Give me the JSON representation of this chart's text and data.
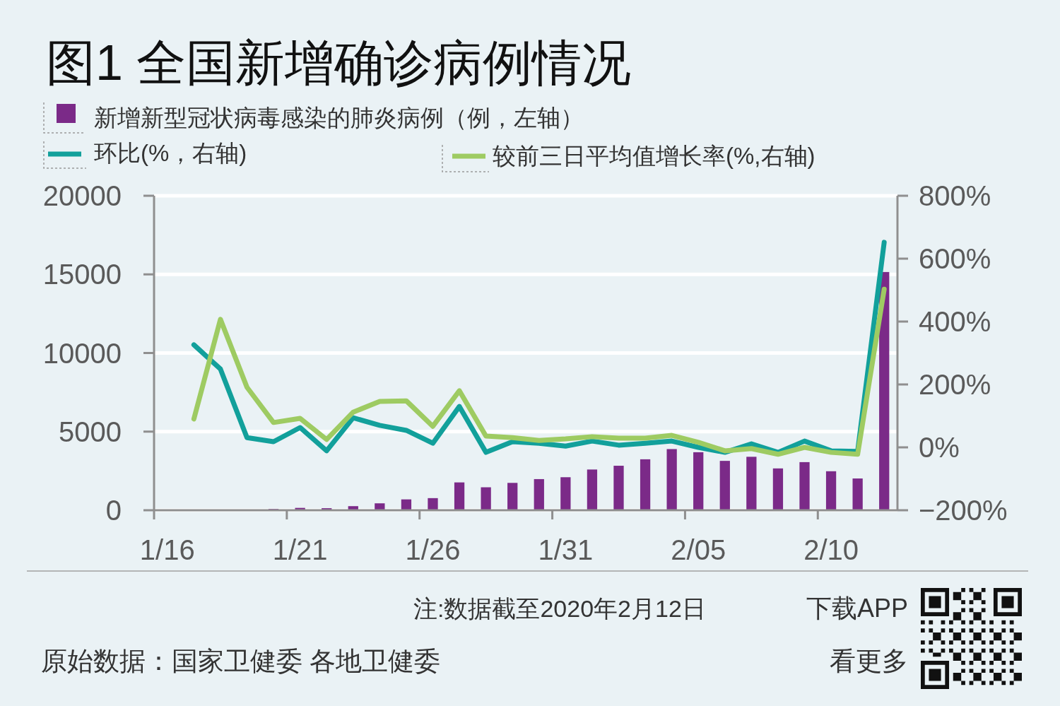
{
  "chart_data": {
    "type": "bar",
    "title": "图1 全国新增确诊病例情况",
    "categories": [
      "1/16",
      null,
      null,
      null,
      null,
      "1/21",
      null,
      null,
      null,
      null,
      "1/26",
      null,
      null,
      null,
      null,
      "1/31",
      null,
      null,
      null,
      null,
      "2/05",
      null,
      null,
      null,
      null,
      "2/10",
      null,
      null
    ],
    "series": [
      {
        "name": "新增新型冠状病毒感染的肺炎病例（例，左轴）",
        "color": "#7b2a88",
        "values": [
          null,
          null,
          null,
          null,
          80,
          150,
          130,
          260,
          440,
          690,
          770,
          1770,
          1460,
          1740,
          1980,
          2100,
          2590,
          2830,
          3240,
          3890,
          3690,
          3140,
          3400,
          2660,
          3060,
          2480,
          2020,
          15150
        ]
      },
      {
        "name": "环比(%，右轴)",
        "type": "line",
        "axis": "y2",
        "color": "#12a09b",
        "values": [
          null,
          326,
          249,
          31,
          18,
          63,
          -11,
          94,
          70,
          54,
          13,
          130,
          -16,
          18,
          13,
          4,
          20,
          7,
          13,
          20,
          0,
          -16,
          11,
          -16,
          20,
          -11,
          -13,
          652
        ]
      },
      {
        "name": "较前三日平均值增长率(%,右轴)",
        "type": "line",
        "axis": "y2",
        "color": "#9ecb62",
        "values": [
          null,
          90,
          407,
          191,
          79,
          92,
          25,
          112,
          146,
          148,
          67,
          180,
          36,
          31,
          22,
          27,
          34,
          29,
          29,
          38,
          16,
          -11,
          -4,
          -22,
          0,
          -16,
          -22,
          503
        ]
      }
    ],
    "ylim": [
      0,
      20000
    ],
    "yticks": [
      0,
      5000,
      10000,
      15000,
      20000
    ],
    "y2lim": [
      -200,
      800
    ],
    "y2ticks": [
      {
        "value": -200,
        "label": "−200%"
      },
      {
        "value": 0,
        "label": "0%"
      },
      {
        "value": 200,
        "label": "200%"
      },
      {
        "value": 400,
        "label": "400%"
      },
      {
        "value": 600,
        "label": "600%"
      },
      {
        "value": 800,
        "label": "800%"
      }
    ],
    "grid": "y",
    "legend": "top left",
    "annotations": [
      "注:数据截至2020年2月12日",
      "下载APP",
      "原始数据：国家卫健委 各地卫健委",
      "看更多"
    ]
  }
}
